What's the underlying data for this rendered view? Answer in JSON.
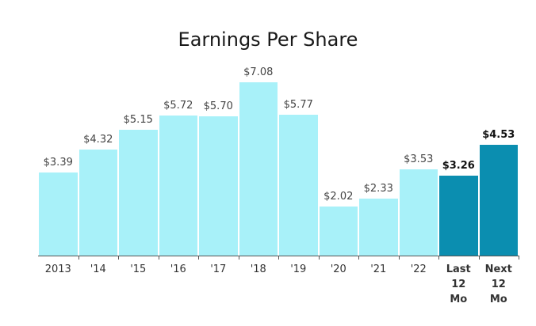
{
  "chart_data": {
    "type": "bar",
    "title": "Earnings Per Share",
    "categories": [
      "2013",
      "'14",
      "'15",
      "'16",
      "'17",
      "'18",
      "'19",
      "'20",
      "'21",
      "'22",
      "Last 12 Mo",
      "Next 12 Mo"
    ],
    "values": [
      3.39,
      4.32,
      5.15,
      5.72,
      5.7,
      7.08,
      5.77,
      2.02,
      2.33,
      3.53,
      3.26,
      4.53
    ],
    "value_labels": [
      "$3.39",
      "$4.32",
      "$5.15",
      "$5.72",
      "$5.70",
      "$7.08",
      "$5.77",
      "$2.02",
      "$2.33",
      "$3.53",
      "$3.26",
      "$4.53"
    ],
    "colors": [
      "#a8f1f9",
      "#a8f1f9",
      "#a8f1f9",
      "#a8f1f9",
      "#a8f1f9",
      "#a8f1f9",
      "#a8f1f9",
      "#a8f1f9",
      "#a8f1f9",
      "#a8f1f9",
      "#0b8eb0",
      "#0b8eb0"
    ],
    "label_weights": [
      "normal",
      "normal",
      "normal",
      "normal",
      "normal",
      "normal",
      "normal",
      "normal",
      "normal",
      "normal",
      "bold",
      "bold"
    ]
  }
}
